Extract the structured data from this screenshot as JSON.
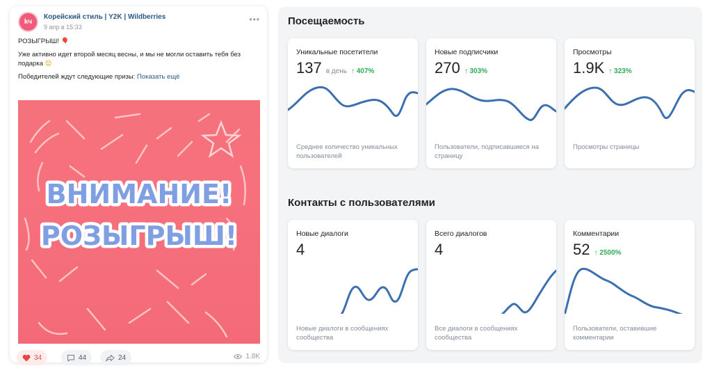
{
  "post": {
    "avatar_text": "kч",
    "author": "Корейский стиль | Y2K | Wildberries",
    "date": "9 апр в 15:33",
    "line1": "РОЗЫГРЫШ!",
    "line1_emoji": "🎈",
    "line2": "Уже активно идет второй месяц весны, и мы не могли оставить тебя без подарка",
    "line2_emoji": "😌",
    "line3": "Победителей ждут следующие призы:",
    "show_more": "Показать ещё",
    "image_text_line1": "ВНИМАНИЕ!",
    "image_text_line2": "РОЗЫГРЫШ!",
    "likes": "34",
    "comments": "44",
    "shares": "24",
    "views": "1.8K",
    "icons": [
      "more-icon",
      "heart-icon",
      "comment-icon",
      "share-icon",
      "eye-icon"
    ]
  },
  "stats": {
    "attendance_title": "Посещаемость",
    "contacts_title": "Контакты с пользователями",
    "accent_color": "#3a6fb0",
    "growth_color": "#2eab55",
    "cards": [
      {
        "title": "Уникальные посетители",
        "value": "137",
        "unit": "в день",
        "growth": "↑ 407%",
        "desc": "Среднее количество уникальных пользователей"
      },
      {
        "title": "Новые подписчики",
        "value": "270",
        "unit": "",
        "growth": "↑ 303%",
        "desc": "Пользователи, подписавшиеся на страницу"
      },
      {
        "title": "Просмотры",
        "value": "1.9K",
        "unit": "",
        "growth": "↑ 323%",
        "desc": "Просмотры страницы"
      },
      {
        "title": "Новые диалоги",
        "value": "4",
        "unit": "",
        "growth": "",
        "desc": "Новые диалоги в сообщениях сообщества"
      },
      {
        "title": "Всего диалогов",
        "value": "4",
        "unit": "",
        "growth": "",
        "desc": "Все диалоги в сообщениях сообщества"
      },
      {
        "title": "Комментарии",
        "value": "52",
        "unit": "",
        "growth": "↑ 2500%",
        "desc": "Пользователи, оставившие комментарии"
      }
    ]
  }
}
